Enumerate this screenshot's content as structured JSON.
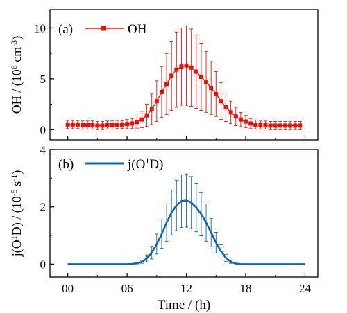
{
  "colors": {
    "oh": "#e3120b",
    "j": "#1565a6",
    "axis": "#000000"
  },
  "x_axis": {
    "label": "Time / (h)",
    "ticks": [
      0,
      6,
      12,
      18,
      24
    ],
    "tick_labels": [
      "00",
      "06",
      "12",
      "18",
      "24"
    ]
  },
  "chart_data": [
    {
      "type": "line",
      "panel": "(a)",
      "markers": "square",
      "error_bars": true,
      "legend": "top-left",
      "ylabel": "OH / (10^6 cm^-3)",
      "xlim": [
        -1.8,
        25.3
      ],
      "ylim": [
        -1.0,
        11.8
      ],
      "yticks": [
        0,
        5,
        10
      ],
      "series": [
        {
          "name": "OH",
          "x": [
            0.0,
            0.5,
            1.0,
            1.5,
            2.0,
            2.5,
            3.0,
            3.5,
            4.0,
            4.5,
            5.0,
            5.5,
            6.0,
            6.5,
            7.0,
            7.5,
            8.0,
            8.5,
            9.0,
            9.5,
            10.0,
            10.5,
            11.0,
            11.5,
            12.0,
            12.5,
            13.0,
            13.5,
            14.0,
            14.5,
            15.0,
            15.5,
            16.0,
            16.5,
            17.0,
            17.5,
            18.0,
            18.5,
            19.0,
            19.5,
            20.0,
            20.5,
            21.0,
            21.5,
            22.0,
            22.5,
            23.0,
            23.5
          ],
          "values": [
            0.5,
            0.5,
            0.5,
            0.45,
            0.45,
            0.45,
            0.4,
            0.4,
            0.45,
            0.45,
            0.5,
            0.5,
            0.55,
            0.6,
            0.75,
            1.0,
            1.4,
            2.0,
            2.8,
            3.7,
            4.5,
            5.3,
            5.9,
            6.2,
            6.3,
            6.1,
            5.7,
            5.2,
            4.7,
            4.1,
            3.5,
            2.8,
            2.2,
            1.7,
            1.3,
            1.0,
            0.8,
            0.6,
            0.5,
            0.45,
            0.45,
            0.4,
            0.4,
            0.4,
            0.4,
            0.4,
            0.4,
            0.4
          ],
          "errors": [
            0.4,
            0.4,
            0.4,
            0.4,
            0.4,
            0.4,
            0.4,
            0.4,
            0.4,
            0.4,
            0.4,
            0.4,
            0.45,
            0.5,
            0.6,
            0.8,
            1.1,
            1.5,
            2.0,
            2.5,
            3.0,
            3.4,
            3.7,
            3.8,
            3.9,
            3.8,
            3.6,
            3.3,
            3.0,
            2.6,
            2.2,
            1.8,
            1.4,
            1.1,
            0.9,
            0.7,
            0.6,
            0.5,
            0.45,
            0.4,
            0.4,
            0.4,
            0.4,
            0.4,
            0.4,
            0.4,
            0.4,
            0.4
          ]
        }
      ]
    },
    {
      "type": "line",
      "panel": "(b)",
      "error_bars": true,
      "legend": "top-left",
      "ylabel": "j(O^1D) / (10^-5 s^-1)",
      "xlim": [
        -1.8,
        25.3
      ],
      "ylim": [
        -0.45,
        4.0
      ],
      "yticks": [
        0,
        2,
        4
      ],
      "series": [
        {
          "name": "j(O^1D)",
          "x": [
            0.0,
            0.5,
            1.0,
            1.5,
            2.0,
            2.5,
            3.0,
            3.5,
            4.0,
            4.5,
            5.0,
            5.5,
            6.0,
            6.5,
            7.0,
            7.5,
            8.0,
            8.5,
            9.0,
            9.5,
            10.0,
            10.5,
            11.0,
            11.5,
            12.0,
            12.5,
            13.0,
            13.5,
            14.0,
            14.5,
            15.0,
            15.5,
            16.0,
            16.5,
            17.0,
            17.5,
            18.0,
            18.5,
            19.0,
            19.5,
            20.0,
            20.5,
            21.0,
            21.5,
            22.0,
            22.5,
            23.0,
            23.5,
            24.0
          ],
          "values": [
            0,
            0,
            0,
            0,
            0,
            0,
            0,
            0,
            0,
            0,
            0,
            0,
            0,
            0.01,
            0.03,
            0.08,
            0.2,
            0.4,
            0.7,
            1.05,
            1.45,
            1.8,
            2.05,
            2.2,
            2.22,
            2.15,
            1.98,
            1.75,
            1.45,
            1.1,
            0.75,
            0.45,
            0.22,
            0.08,
            0.02,
            0,
            0,
            0,
            0,
            0,
            0,
            0,
            0,
            0,
            0,
            0,
            0,
            0,
            0
          ],
          "errors": [
            0,
            0,
            0,
            0,
            0,
            0,
            0,
            0,
            0,
            0,
            0,
            0,
            0,
            0.01,
            0.02,
            0.05,
            0.12,
            0.22,
            0.35,
            0.5,
            0.65,
            0.78,
            0.88,
            0.92,
            0.93,
            0.91,
            0.85,
            0.76,
            0.65,
            0.5,
            0.36,
            0.23,
            0.12,
            0.05,
            0.01,
            0,
            0,
            0,
            0,
            0,
            0,
            0,
            0,
            0,
            0,
            0,
            0,
            0,
            0
          ]
        }
      ]
    }
  ]
}
